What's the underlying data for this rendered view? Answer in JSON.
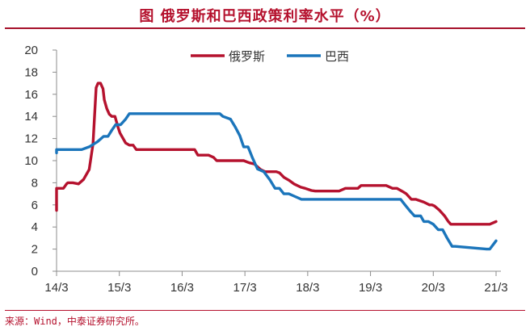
{
  "title": "图   俄罗斯和巴西政策利率水平（%）",
  "source": "来源：Wind，中泰证券研究所。",
  "colors": {
    "russia": "#b5122e",
    "brazil": "#1b75bb",
    "accent": "#b5122e",
    "axis": "#8c8c8c"
  },
  "chart_data": {
    "type": "line",
    "title": "俄罗斯和巴西政策利率水平（%）",
    "ylabel": "",
    "xlabel": "",
    "ylim": [
      0,
      20
    ],
    "yticks": [
      0,
      2,
      4,
      6,
      8,
      10,
      12,
      14,
      16,
      18,
      20
    ],
    "xticks": [
      "14/3",
      "15/3",
      "16/3",
      "17/3",
      "18/3",
      "19/3",
      "20/3",
      "21/3"
    ],
    "xlim": [
      2014.2,
      2021.2
    ],
    "grid": false,
    "legend": "top-center",
    "series": [
      {
        "name": "俄罗斯",
        "color": "#b5122e",
        "x": [
          2014.0,
          2014.03,
          2014.06,
          2014.11,
          2014.22,
          2014.31,
          2014.36,
          2014.38,
          2014.46,
          2014.55,
          2014.63,
          2014.72,
          2014.78,
          2014.83,
          2014.86,
          2014.9,
          2014.94,
          2014.96,
          2015.0,
          2015.04,
          2015.08,
          2015.13,
          2015.18,
          2015.21,
          2015.3,
          2015.36,
          2015.42,
          2015.47,
          2015.55,
          2015.65,
          2016.0,
          2016.3,
          2016.4,
          2016.45,
          2016.62,
          2016.7,
          2016.75,
          2017.1,
          2017.18,
          2017.27,
          2017.35,
          2017.45,
          2017.52,
          2017.7,
          2017.75,
          2017.82,
          2017.91,
          2017.98,
          2018.09,
          2018.16,
          2018.26,
          2018.32,
          2018.7,
          2018.8,
          2019.0,
          2019.05,
          2019.45,
          2019.55,
          2019.62,
          2019.7,
          2019.77,
          2019.85,
          2019.92,
          2020.05,
          2020.14,
          2020.18,
          2020.22,
          2020.3,
          2020.38,
          2020.44,
          2020.48,
          2020.52,
          2021.1,
          2021.2
        ],
        "values": [
          5.5,
          6.9,
          7.2,
          7.5,
          7.5,
          7.5,
          7.9,
          8.0,
          8.0,
          7.9,
          8.3,
          9.2,
          11.5,
          16.6,
          17.0,
          17.0,
          16.5,
          15.5,
          14.7,
          14.2,
          14.0,
          14.0,
          13.0,
          12.5,
          11.6,
          11.4,
          11.4,
          11.0,
          11.0,
          11.0,
          11.0,
          11.0,
          11.0,
          10.5,
          10.5,
          10.3,
          10.0,
          10.0,
          10.0,
          9.8,
          9.7,
          9.2,
          9.0,
          9.0,
          8.9,
          8.5,
          8.2,
          7.9,
          7.6,
          7.5,
          7.3,
          7.25,
          7.25,
          7.5,
          7.5,
          7.75,
          7.75,
          7.5,
          7.5,
          7.25,
          7.0,
          6.5,
          6.5,
          6.25,
          6.0,
          6.0,
          5.9,
          5.5,
          5.0,
          4.5,
          4.25,
          4.25,
          4.25,
          4.5
        ]
      },
      {
        "name": "巴西",
        "color": "#1b75bb",
        "x": [
          2014.0,
          2014.08,
          2014.12,
          2014.2,
          2014.6,
          2014.72,
          2014.85,
          2014.95,
          2015.02,
          2015.08,
          2015.14,
          2015.22,
          2015.3,
          2015.36,
          2015.42,
          2015.5,
          2016.8,
          2016.85,
          2016.97,
          2017.05,
          2017.12,
          2017.18,
          2017.25,
          2017.32,
          2017.4,
          2017.5,
          2017.6,
          2017.68,
          2017.75,
          2017.82,
          2017.9,
          2018.0,
          2018.1,
          2018.15,
          2019.6,
          2019.68,
          2019.75,
          2019.82,
          2019.9,
          2020.0,
          2020.05,
          2020.12,
          2020.2,
          2020.28,
          2020.35,
          2020.42,
          2020.5,
          2020.55,
          2021.05,
          2021.1,
          2021.2
        ],
        "values": [
          10.7,
          10.9,
          11.0,
          11.0,
          11.0,
          11.25,
          11.7,
          12.2,
          12.2,
          12.75,
          13.25,
          13.25,
          13.75,
          14.25,
          14.25,
          14.25,
          14.25,
          14.0,
          13.75,
          13.0,
          12.25,
          11.25,
          11.25,
          10.25,
          9.25,
          9.0,
          8.25,
          7.5,
          7.5,
          7.0,
          7.0,
          6.75,
          6.5,
          6.5,
          6.5,
          6.5,
          6.0,
          5.5,
          5.0,
          5.0,
          4.5,
          4.5,
          4.25,
          3.75,
          3.75,
          3.0,
          2.25,
          2.25,
          2.0,
          2.0,
          2.75
        ]
      }
    ]
  }
}
